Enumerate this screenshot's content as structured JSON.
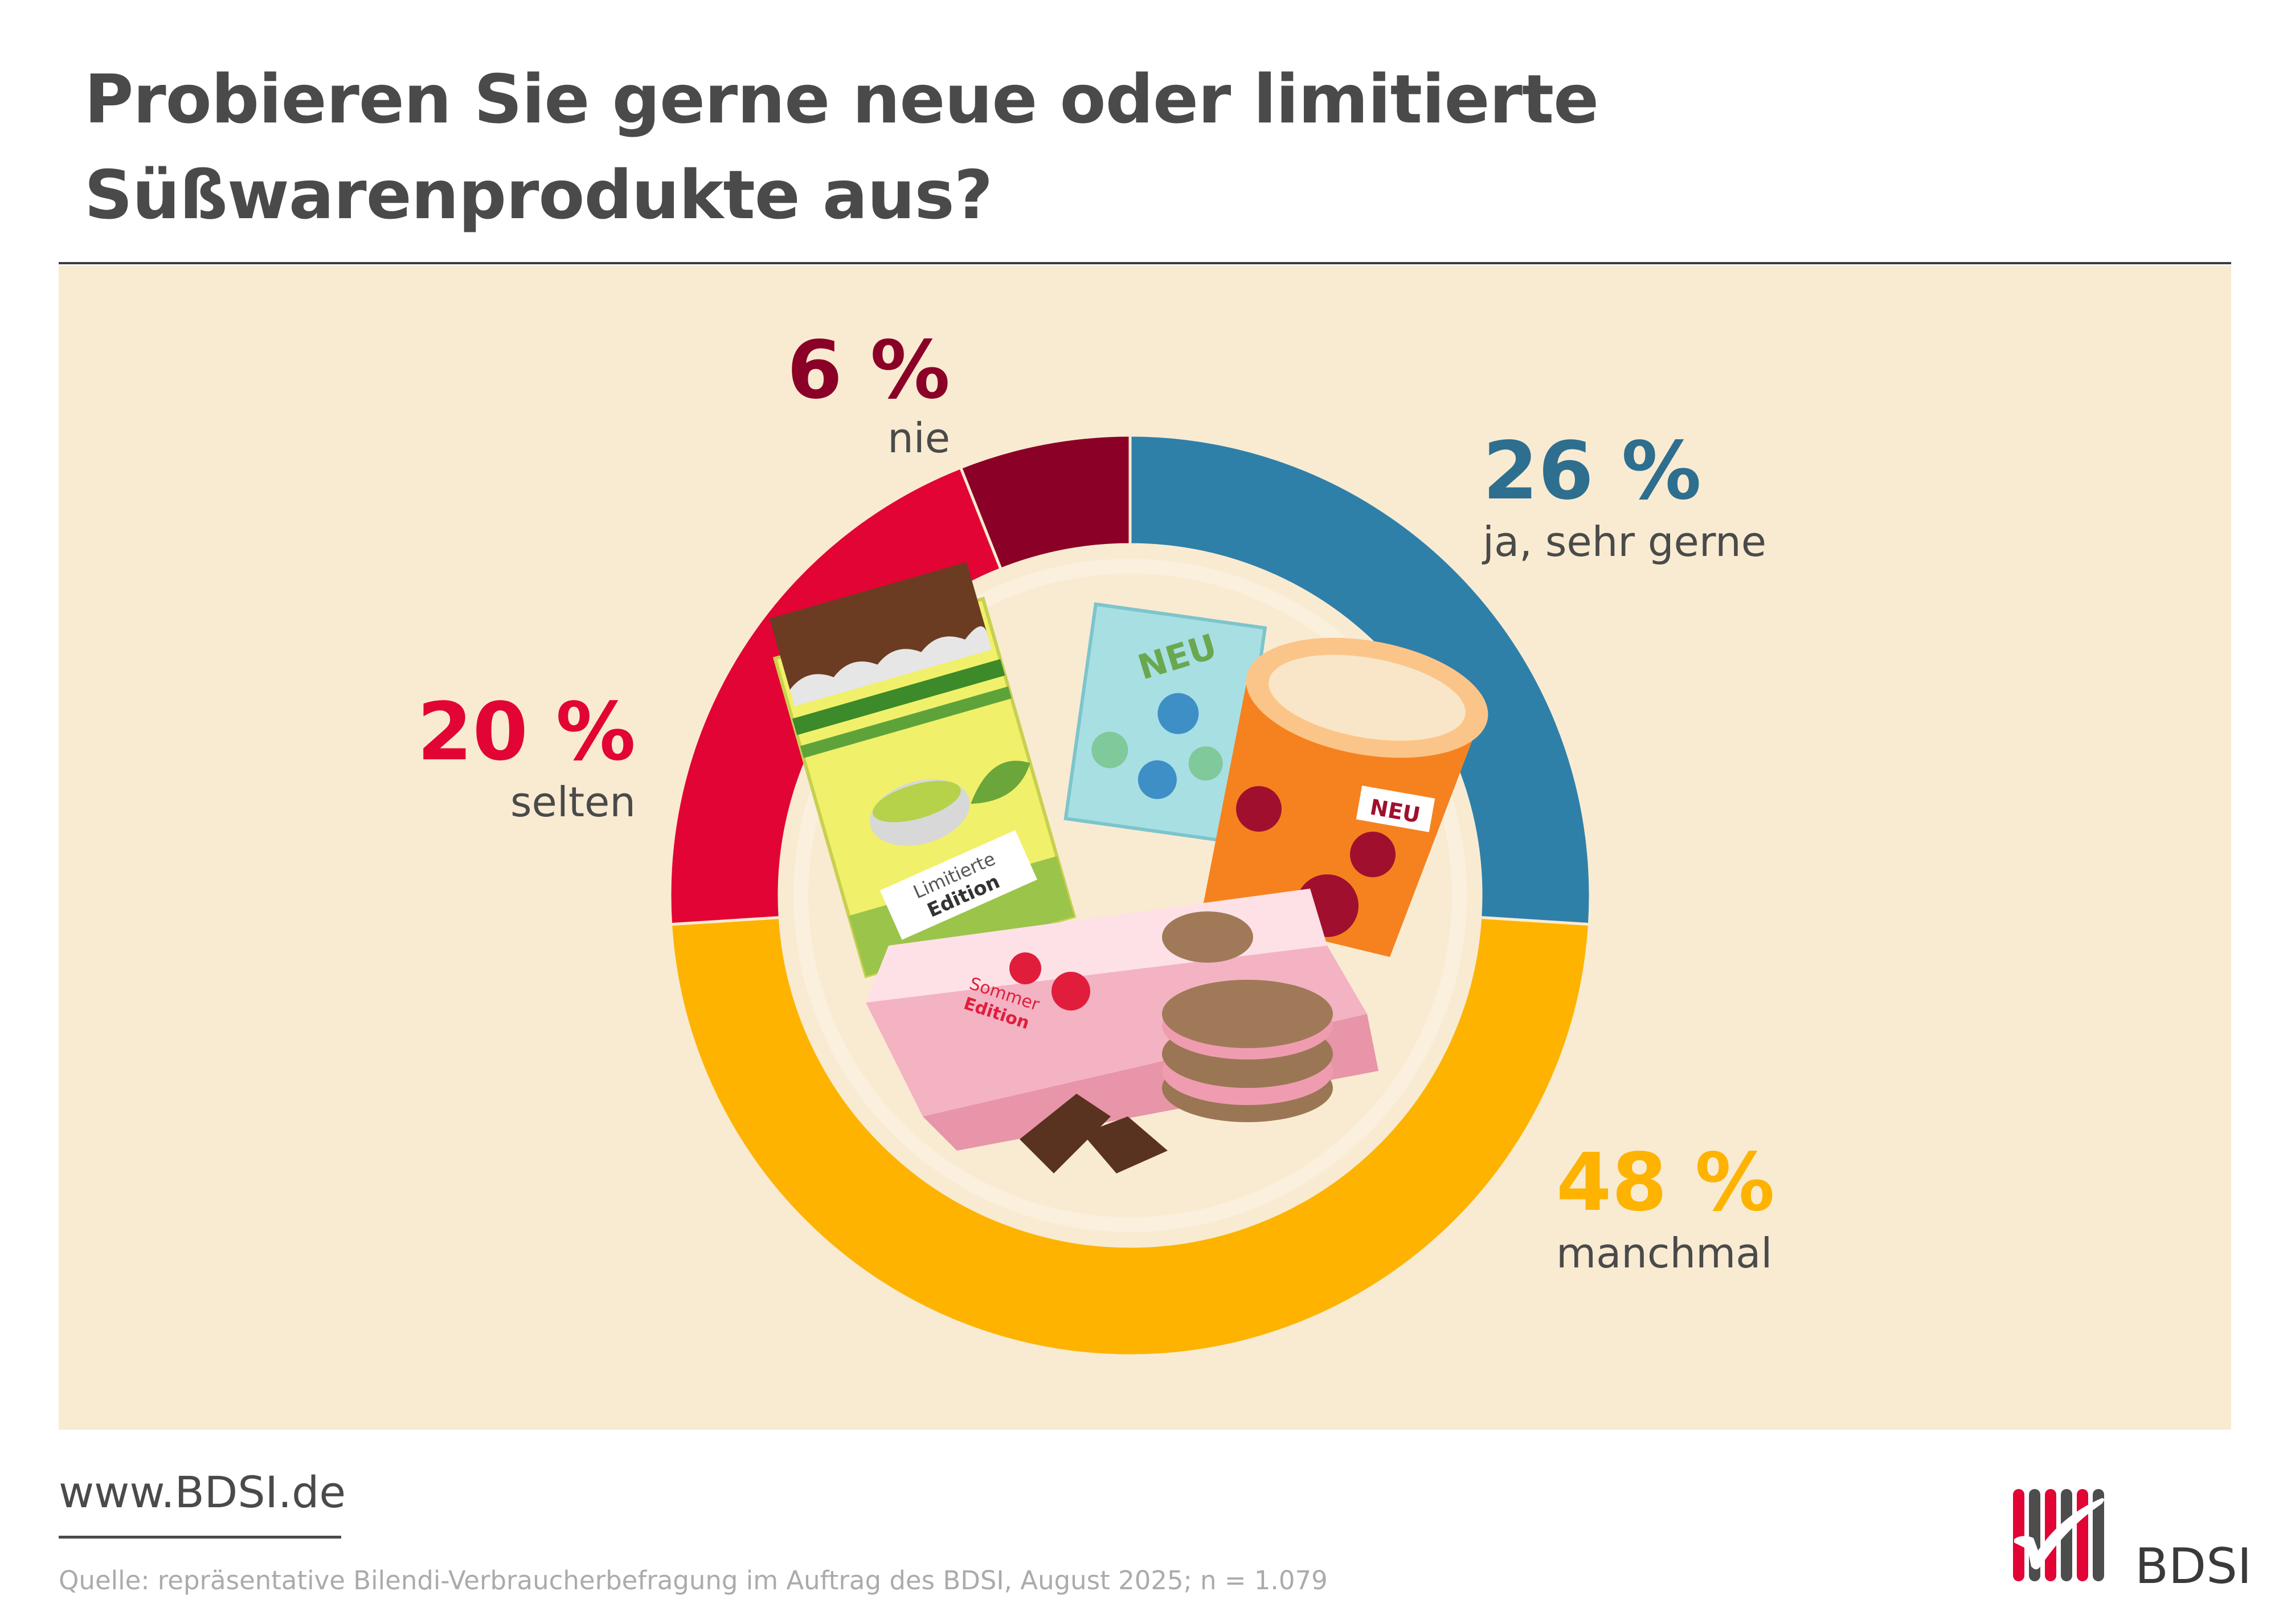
{
  "title": {
    "line1": "Probieren Sie gerne neue oder limitierte",
    "line2": "Süßwarenprodukte aus?"
  },
  "chart_data": {
    "type": "pie",
    "style": "donut",
    "title": "Probieren Sie gerne neue oder limitierte Süßwarenprodukte aus?",
    "start": "top, clockwise",
    "slices": [
      {
        "label": "ja, sehr gerne",
        "value": 26,
        "value_label": "26 %",
        "color": "#2e80a9"
      },
      {
        "label": "manchmal",
        "value": 48,
        "value_label": "48 %",
        "color": "#fdb300"
      },
      {
        "label": "selten",
        "value": 20,
        "value_label": "20 %",
        "color": "#e20434"
      },
      {
        "label": "nie",
        "value": 6,
        "value_label": "6 %",
        "color": "#8b0027"
      }
    ],
    "center_illustration": "sweets",
    "illustration_text": {
      "neu_bag": "NEU",
      "neu_cup": "NEU",
      "limited_1": "Limitierte",
      "limited_2": "Edition",
      "summer_1": "Sommer",
      "summer_2": "Edition"
    }
  },
  "footer": {
    "url": "www.BDSI.de",
    "source": "Quelle: repräsentative Bilendi-Verbraucherbefragung im Auftrag des BDSI, August 2025; n = 1.079",
    "logo_text": "BDSI"
  },
  "colors": {
    "background_panel": "#f8ebd2",
    "title": "#4a4a4a",
    "brand_red": "#e20434",
    "brand_gray": "#4d4d4d"
  }
}
